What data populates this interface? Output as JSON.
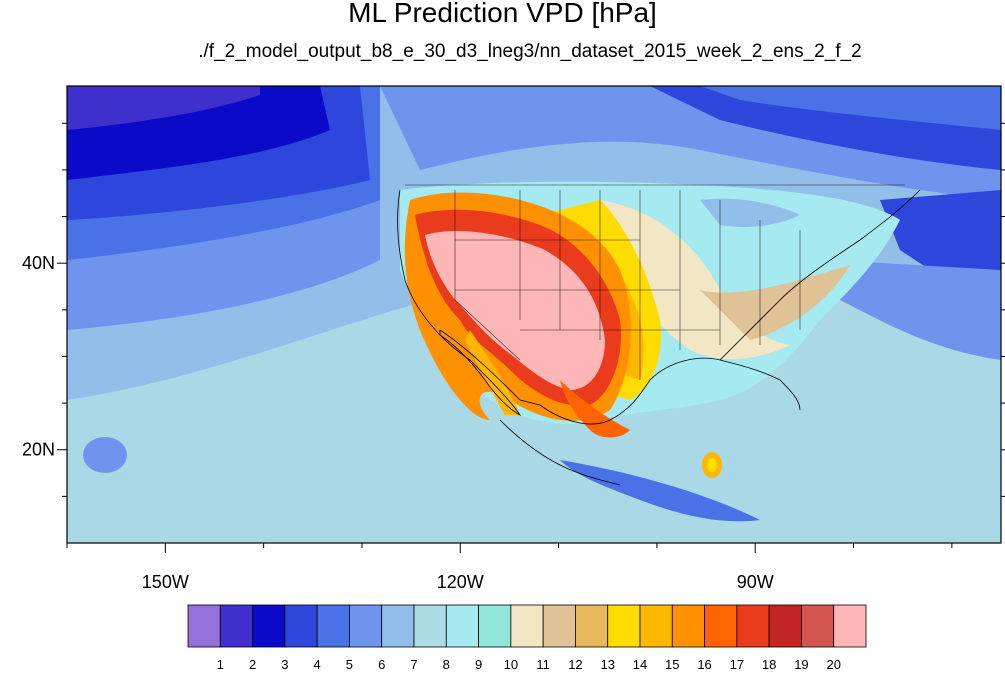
{
  "title": "ML Prediction VPD [hPa]",
  "subtitle": "./f_2_model_output_b8_e_30_d3_lneg3/nn_dataset_2015_week_2_ens_2_f_2",
  "map": {
    "lon_range": [
      -160,
      -65
    ],
    "lat_range": [
      10,
      59
    ],
    "lon_labels": [
      {
        "lon": -150,
        "text": "150W"
      },
      {
        "lon": -120,
        "text": "120W"
      },
      {
        "lon": -90,
        "text": "90W"
      }
    ],
    "lat_labels": [
      {
        "lat": 40,
        "text": "40N"
      },
      {
        "lat": 20,
        "text": "20N"
      }
    ]
  },
  "colorbar": {
    "labels": [
      "1",
      "2",
      "3",
      "4",
      "5",
      "6",
      "7",
      "8",
      "9",
      "10",
      "11",
      "12",
      "13",
      "14",
      "15",
      "16",
      "17",
      "18",
      "19",
      "20"
    ],
    "colors": [
      "#9370db",
      "#3f2fcc",
      "#0a0ac8",
      "#2d46dc",
      "#4a72e6",
      "#6e94ee",
      "#92bfea",
      "#acdce6",
      "#a5eaf0",
      "#90e6d8",
      "#f3e6c4",
      "#dfc295",
      "#e7b95b",
      "#ffdc00",
      "#ffb700",
      "#ff9100",
      "#ff6400",
      "#ea3c1c",
      "#c52424",
      "#d25550",
      "#ffb6b6"
    ]
  }
}
